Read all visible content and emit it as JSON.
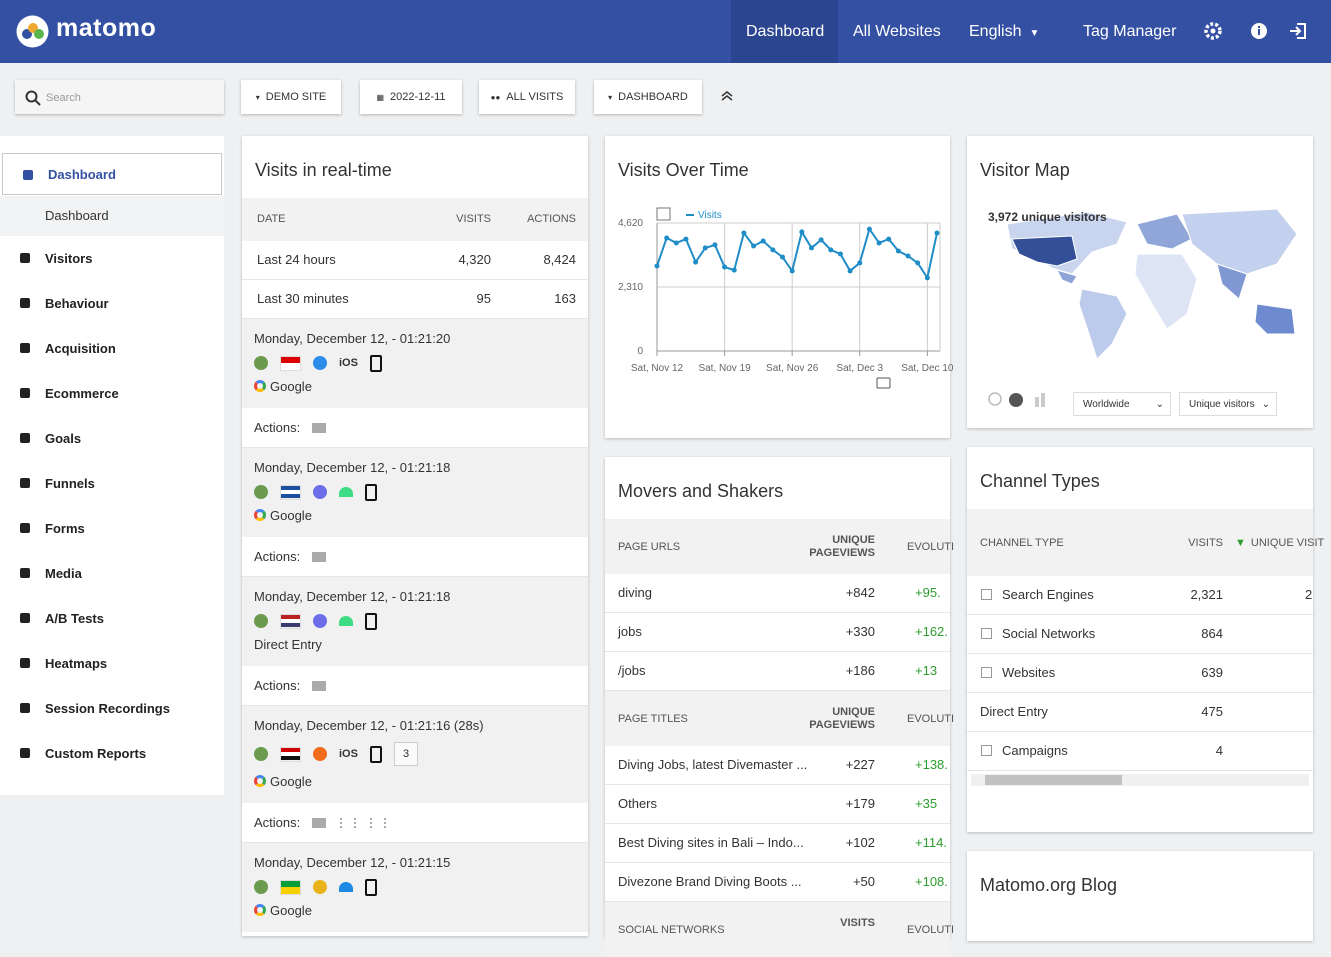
{
  "header": {
    "logo": "matomo",
    "nav": [
      "Dashboard",
      "All Websites",
      "English",
      "Tag Manager"
    ]
  },
  "toolbar": {
    "search_placeholder": "Search",
    "buttons": [
      "DEMO SITE",
      "2022-12-11",
      "ALL VISITS",
      "DASHBOARD"
    ]
  },
  "sidebar": {
    "items": [
      {
        "label": "Dashboard",
        "active": true,
        "subitems": [
          "Dashboard"
        ]
      },
      {
        "label": "Visitors"
      },
      {
        "label": "Behaviour"
      },
      {
        "label": "Acquisition"
      },
      {
        "label": "Ecommerce"
      },
      {
        "label": "Goals"
      },
      {
        "label": "Funnels"
      },
      {
        "label": "Forms"
      },
      {
        "label": "Media"
      },
      {
        "label": "A/B Tests"
      },
      {
        "label": "Heatmaps"
      },
      {
        "label": "Session Recordings"
      },
      {
        "label": "Custom Reports"
      }
    ]
  },
  "realtime": {
    "title": "Visits in real-time",
    "columns": [
      "DATE",
      "VISITS",
      "ACTIONS"
    ],
    "rows": [
      [
        "Last 24 hours",
        "4,320",
        "8,424"
      ],
      [
        "Last 30 minutes",
        "95",
        "163"
      ]
    ],
    "actions_label": "Actions:",
    "visits": [
      {
        "time": "Monday, December 12, - 01:21:20",
        "os": "iOS",
        "referrer": "Google"
      },
      {
        "time": "Monday, December 12, - 01:21:18",
        "referrer": "Google"
      },
      {
        "time": "Monday, December 12, - 01:21:18",
        "referrer": "Direct Entry"
      },
      {
        "time": "Monday, December 12, - 01:21:16 (28s)",
        "os": "iOS",
        "badge": "3",
        "referrer": "Google"
      },
      {
        "time": "Monday, December 12, - 01:21:15",
        "referrer": "Google"
      }
    ]
  },
  "visits_over_time": {
    "title": "Visits Over Time",
    "chart_data": {
      "type": "line",
      "categories": [
        "Sat, Nov 12",
        null,
        null,
        null,
        null,
        null,
        null,
        "Sat, Nov 19",
        null,
        null,
        null,
        null,
        null,
        null,
        "Sat, Nov 26",
        null,
        null,
        null,
        null,
        null,
        null,
        "Sat, Dec 3",
        null,
        null,
        null,
        null,
        null,
        null,
        "Sat, Dec 10",
        null
      ],
      "series": [
        {
          "name": "Visits",
          "color": "#1f8dc7",
          "values": [
            3070,
            4080,
            3900,
            4040,
            3210,
            3720,
            3830,
            3030,
            2920,
            4260,
            3790,
            3970,
            3650,
            3390,
            2890,
            4300,
            3720,
            4010,
            3650,
            3500,
            2890,
            3180,
            4400,
            3900,
            4040,
            3610,
            3430,
            3180,
            2640,
            4260
          ]
        }
      ],
      "ylim": [
        0,
        4620
      ],
      "yticks": [
        0,
        {
          "value": 2310,
          "label": "2,310"
        },
        {
          "value": 4620,
          "label": "4,620"
        }
      ],
      "grid": true
    }
  },
  "visitor_map": {
    "title": "Visitor Map",
    "summary": "3,972 unique visitors",
    "selects": [
      "Worldwide",
      "Unique visitors"
    ]
  },
  "movers_and_shakers": {
    "title": "Movers and Shakers",
    "sections": [
      {
        "columns": [
          "PAGE URLS",
          "UNIQUE PAGEVIEWS",
          "EVOLUTI"
        ],
        "rows": [
          [
            "diving",
            "+842",
            "+95."
          ],
          [
            "jobs",
            "+330",
            "+162."
          ],
          [
            "/jobs",
            "+186",
            "+13"
          ]
        ]
      },
      {
        "columns": [
          "PAGE TITLES",
          "UNIQUE PAGEVIEWS",
          "EVOLUTI"
        ],
        "rows": [
          [
            "Diving Jobs, latest Divemaster ...",
            "+227",
            "+138."
          ],
          [
            "Others",
            "+179",
            "+35"
          ],
          [
            "Best Diving sites in Bali – Indo...",
            "+102",
            "+114."
          ],
          [
            "Divezone Brand Diving Boots ...",
            "+50",
            "+108."
          ]
        ]
      },
      {
        "columns": [
          "SOCIAL NETWORKS",
          "VISITS",
          "EVOLUTI"
        ],
        "rows": []
      }
    ]
  },
  "channel_types": {
    "title": "Channel Types",
    "columns": [
      "CHANNEL TYPE",
      "VISITS",
      "UNIQUE VISIT"
    ],
    "rows": [
      {
        "cells": [
          "Search Engines",
          "2,321",
          "2"
        ],
        "expandable": true
      },
      {
        "cells": [
          "Social Networks",
          "864"
        ],
        "expandable": true
      },
      {
        "cells": [
          "Websites",
          "639"
        ],
        "expandable": true
      },
      {
        "cells": [
          "Direct Entry",
          "475"
        ],
        "expandable": false
      },
      {
        "cells": [
          "Campaigns",
          "4"
        ],
        "expandable": true
      }
    ]
  },
  "blog": {
    "title": "Matomo.org Blog"
  }
}
